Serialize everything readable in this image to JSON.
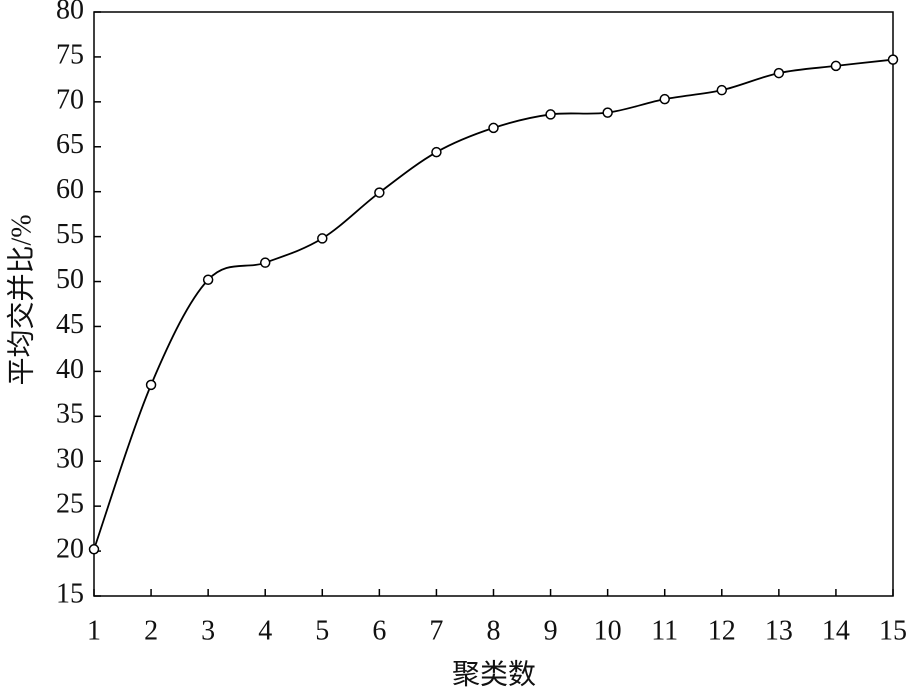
{
  "chart_data": {
    "type": "line",
    "x_label": "聚类数",
    "y_label": "平均交并比/%",
    "x": [
      1,
      2,
      3,
      4,
      5,
      6,
      7,
      8,
      9,
      10,
      11,
      12,
      13,
      14,
      15
    ],
    "series": [
      {
        "color": "#000000",
        "values": [
          20.2,
          38.5,
          50.2,
          52.1,
          54.8,
          59.9,
          64.4,
          67.1,
          68.6,
          68.8,
          70.3,
          71.3,
          73.2,
          74.0,
          74.7
        ]
      }
    ],
    "xlim": [
      1,
      15
    ],
    "xticks": [
      1,
      2,
      3,
      4,
      5,
      6,
      7,
      8,
      9,
      10,
      11,
      12,
      13,
      14,
      15
    ],
    "ylim": [
      15,
      80
    ],
    "yticks": [
      15,
      20,
      25,
      30,
      35,
      40,
      45,
      50,
      55,
      60,
      65,
      70,
      75,
      80
    ]
  }
}
